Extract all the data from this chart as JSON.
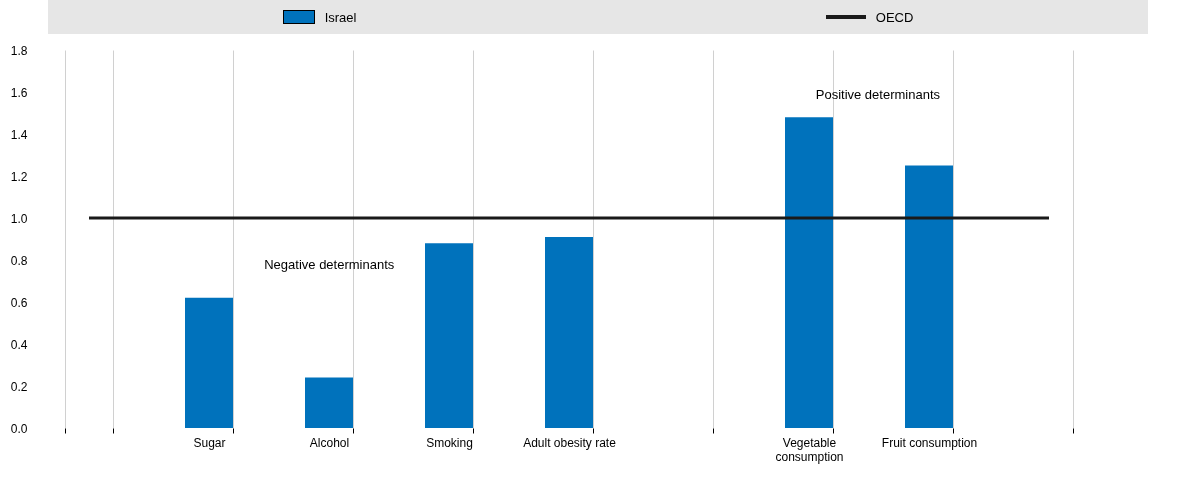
{
  "chart_data": {
    "type": "bar",
    "categories": [
      null,
      "Sugar",
      "Alcohol",
      "Smoking",
      "Adult obesity rate",
      null,
      "Vegetable consumption",
      "Fruit consumption",
      null
    ],
    "series": [
      {
        "name": "Israel",
        "color": "#0072bc",
        "values": [
          null,
          0.62,
          0.24,
          0.88,
          0.91,
          null,
          1.48,
          1.25,
          null
        ]
      },
      {
        "name": "OECD",
        "type": "line",
        "color": "#1a1a1a",
        "values": [
          1,
          1,
          1,
          1,
          1,
          1,
          1,
          1,
          1
        ]
      }
    ],
    "ylim": [
      0,
      1.8
    ],
    "yticks": [
      {
        "value": 0,
        "label": "0.0"
      },
      {
        "value": 0.2,
        "label": "0.2"
      },
      {
        "value": 0.4,
        "label": "0.4"
      },
      {
        "value": 0.6,
        "label": "0.6"
      },
      {
        "value": 0.8,
        "label": "0.8"
      },
      {
        "value": 1,
        "label": "1.0"
      },
      {
        "value": 1.2,
        "label": "1.2"
      },
      {
        "value": 1.4,
        "label": "1.4"
      },
      {
        "value": 1.6,
        "label": "1.6"
      },
      {
        "value": 1.8,
        "label": "1.8"
      }
    ],
    "annotations": [
      "Negative determinants",
      "Positive determinants"
    ],
    "grid": "x",
    "legend": "top",
    "marker": "none",
    "line_style": "solid"
  }
}
